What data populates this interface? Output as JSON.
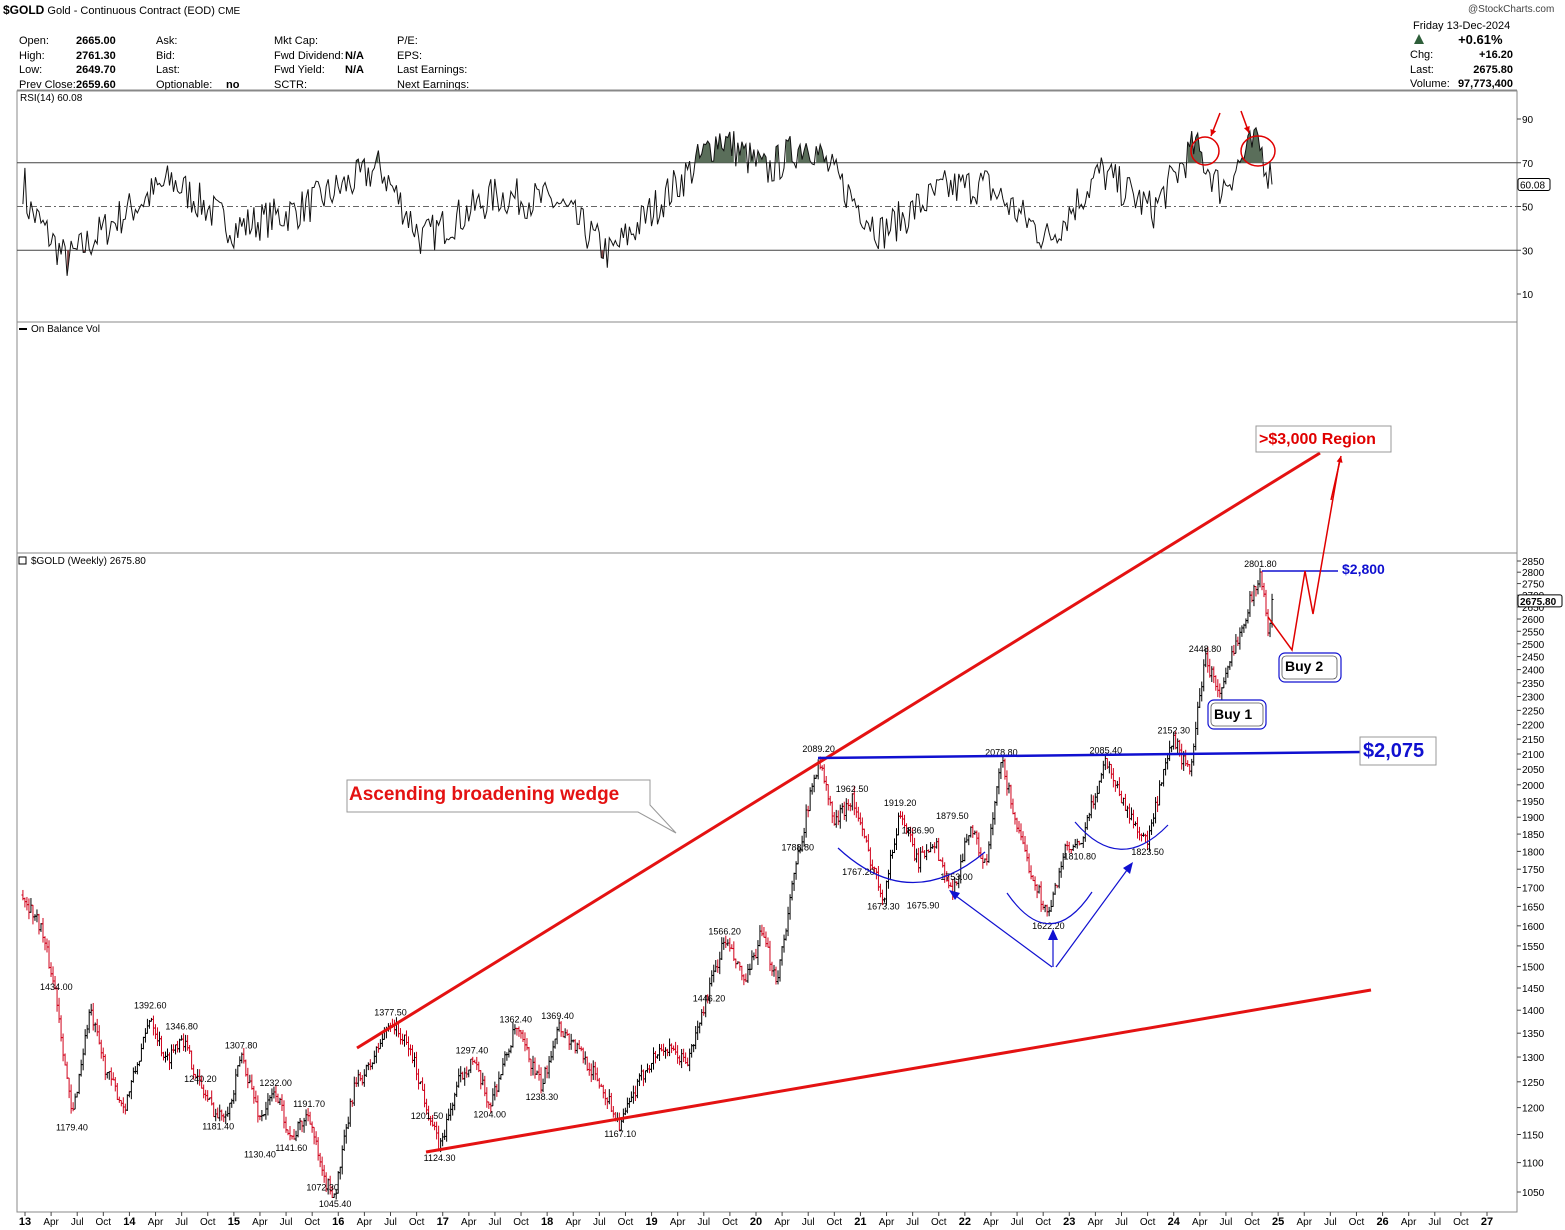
{
  "header": {
    "symbol": "$GOLD",
    "name": "Gold - Continuous Contract (EOD)",
    "exchange": "CME",
    "watermark": "@StockCharts.com",
    "date": "Friday  13-Dec-2024",
    "pct_change": "+0.61%",
    "fields_col1": [
      {
        "label": "Open:",
        "value": "2665.00"
      },
      {
        "label": "High:",
        "value": "2761.30"
      },
      {
        "label": "Low:",
        "value": "2649.70"
      },
      {
        "label": "Prev Close:",
        "value": "2659.60"
      }
    ],
    "fields_col2": [
      {
        "label": "Ask:",
        "value": ""
      },
      {
        "label": "Bid:",
        "value": ""
      },
      {
        "label": "Last:",
        "value": ""
      },
      {
        "label": "Optionable:",
        "value": "no"
      }
    ],
    "fields_col3": [
      {
        "label": "Mkt Cap:",
        "value": ""
      },
      {
        "label": "Fwd Dividend:",
        "value": "N/A"
      },
      {
        "label": "Fwd Yield:",
        "value": "N/A"
      },
      {
        "label": "SCTR:",
        "value": ""
      }
    ],
    "fields_col4": [
      {
        "label": "P/E:",
        "value": ""
      },
      {
        "label": "EPS:",
        "value": ""
      },
      {
        "label": "Last Earnings:",
        "value": ""
      },
      {
        "label": "Next Earnings:",
        "value": ""
      }
    ],
    "fields_right": [
      {
        "label": "Chg:",
        "value": "+16.20"
      },
      {
        "label": "Last:",
        "value": "2675.80"
      },
      {
        "label": "Volume:",
        "value": "97,773,400"
      }
    ]
  },
  "colors": {
    "up_bar": "#000000",
    "down_bar": "#d0021b",
    "wedge": "#e41212",
    "resistance": "#1010d0",
    "rsi_fill": "#5a6e5a",
    "annot_red": "#e00000"
  },
  "chart_data": [
    {
      "type": "line",
      "title": "RSI(14) 60.08",
      "current_value_label": "60.08",
      "current_value": 60.08,
      "ylim": [
        0,
        100
      ],
      "yticks": [
        90,
        70,
        50,
        30,
        10
      ],
      "reference_lines": [
        70,
        50,
        30
      ],
      "annotations": [
        "overbought-peak-circle-1",
        "overbought-peak-circle-2"
      ]
    },
    {
      "type": "line",
      "title": "On Balance Vol"
    },
    {
      "type": "bar",
      "subtype": "ohlc",
      "title": "$GOLD (Weekly) 2675.80",
      "current_value_label": "2675.80",
      "current_value": 2675.8,
      "ylim": [
        1000,
        2900
      ],
      "yticks": [
        1050,
        1100,
        1150,
        1200,
        1250,
        1300,
        1350,
        1400,
        1450,
        1500,
        1550,
        1600,
        1650,
        1700,
        1750,
        1800,
        1850,
        1900,
        1950,
        2000,
        2050,
        2100,
        2150,
        2200,
        2250,
        2300,
        2350,
        2400,
        2450,
        2500,
        2550,
        2600,
        2650,
        2700,
        2750,
        2800,
        2850
      ],
      "x_axis_range": [
        2013.0,
        2027.5
      ],
      "x_ticks": [
        {
          "label": "13",
          "x": 2013.0,
          "major": true
        },
        {
          "label": "Apr",
          "x": 2013.25
        },
        {
          "label": "Jul",
          "x": 2013.5
        },
        {
          "label": "Oct",
          "x": 2013.75
        },
        {
          "label": "14",
          "x": 2014.0,
          "major": true
        },
        {
          "label": "Apr",
          "x": 2014.25
        },
        {
          "label": "Jul",
          "x": 2014.5
        },
        {
          "label": "Oct",
          "x": 2014.75
        },
        {
          "label": "15",
          "x": 2015.0,
          "major": true
        },
        {
          "label": "Apr",
          "x": 2015.25
        },
        {
          "label": "Jul",
          "x": 2015.5
        },
        {
          "label": "Oct",
          "x": 2015.75
        },
        {
          "label": "16",
          "x": 2016.0,
          "major": true
        },
        {
          "label": "Apr",
          "x": 2016.25
        },
        {
          "label": "Jul",
          "x": 2016.5
        },
        {
          "label": "Oct",
          "x": 2016.75
        },
        {
          "label": "17",
          "x": 2017.0,
          "major": true
        },
        {
          "label": "Apr",
          "x": 2017.25
        },
        {
          "label": "Jul",
          "x": 2017.5
        },
        {
          "label": "Oct",
          "x": 2017.75
        },
        {
          "label": "18",
          "x": 2018.0,
          "major": true
        },
        {
          "label": "Apr",
          "x": 2018.25
        },
        {
          "label": "Jul",
          "x": 2018.5
        },
        {
          "label": "Oct",
          "x": 2018.75
        },
        {
          "label": "19",
          "x": 2019.0,
          "major": true
        },
        {
          "label": "Apr",
          "x": 2019.25
        },
        {
          "label": "Jul",
          "x": 2019.5
        },
        {
          "label": "Oct",
          "x": 2019.75
        },
        {
          "label": "20",
          "x": 2020.0,
          "major": true
        },
        {
          "label": "Apr",
          "x": 2020.25
        },
        {
          "label": "Jul",
          "x": 2020.5
        },
        {
          "label": "Oct",
          "x": 2020.75
        },
        {
          "label": "21",
          "x": 2021.0,
          "major": true
        },
        {
          "label": "Apr",
          "x": 2021.25
        },
        {
          "label": "Jul",
          "x": 2021.5
        },
        {
          "label": "Oct",
          "x": 2021.75
        },
        {
          "label": "22",
          "x": 2022.0,
          "major": true
        },
        {
          "label": "Apr",
          "x": 2022.25
        },
        {
          "label": "Jul",
          "x": 2022.5
        },
        {
          "label": "Oct",
          "x": 2022.75
        },
        {
          "label": "23",
          "x": 2023.0,
          "major": true
        },
        {
          "label": "Apr",
          "x": 2023.25
        },
        {
          "label": "Jul",
          "x": 2023.5
        },
        {
          "label": "Oct",
          "x": 2023.75
        },
        {
          "label": "24",
          "x": 2024.0,
          "major": true
        },
        {
          "label": "Apr",
          "x": 2024.25
        },
        {
          "label": "Jul",
          "x": 2024.5
        },
        {
          "label": "Oct",
          "x": 2024.75
        },
        {
          "label": "25",
          "x": 2025.0,
          "major": true
        },
        {
          "label": "Apr",
          "x": 2025.25
        },
        {
          "label": "Jul",
          "x": 2025.5
        },
        {
          "label": "Oct",
          "x": 2025.75
        },
        {
          "label": "26",
          "x": 2026.0,
          "major": true
        },
        {
          "label": "Apr",
          "x": 2026.25
        },
        {
          "label": "Jul",
          "x": 2026.5
        },
        {
          "label": "Oct",
          "x": 2026.75
        },
        {
          "label": "27",
          "x": 2027.0,
          "major": true
        }
      ],
      "key_points": [
        [
          2012.98,
          1680
        ],
        [
          2013.15,
          1600
        ],
        [
          2013.3,
          1434
        ],
        [
          2013.45,
          1179.4
        ],
        [
          2013.62,
          1400
        ],
        [
          2013.78,
          1270
        ],
        [
          2013.95,
          1200
        ],
        [
          2014.15,
          1340
        ],
        [
          2014.2,
          1392.6
        ],
        [
          2014.35,
          1290
        ],
        [
          2014.5,
          1346.8
        ],
        [
          2014.68,
          1240.2
        ],
        [
          2014.85,
          1181.4
        ],
        [
          2014.98,
          1210
        ],
        [
          2015.07,
          1307.8
        ],
        [
          2015.25,
          1180
        ],
        [
          2015.4,
          1232
        ],
        [
          2015.55,
          1141.6
        ],
        [
          2015.72,
          1191.7
        ],
        [
          2015.85,
          1072.3
        ],
        [
          2015.97,
          1045.4
        ],
        [
          2016.15,
          1240
        ],
        [
          2016.3,
          1280
        ],
        [
          2016.5,
          1377.5
        ],
        [
          2016.7,
          1310
        ],
        [
          2016.85,
          1201.5
        ],
        [
          2016.97,
          1124.3
        ],
        [
          2017.15,
          1250
        ],
        [
          2017.28,
          1297.4
        ],
        [
          2017.45,
          1204
        ],
        [
          2017.7,
          1362.4
        ],
        [
          2017.95,
          1238.3
        ],
        [
          2018.1,
          1369.4
        ],
        [
          2018.35,
          1300
        ],
        [
          2018.55,
          1230
        ],
        [
          2018.7,
          1167.1
        ],
        [
          2018.95,
          1280
        ],
        [
          2019.1,
          1320
        ],
        [
          2019.35,
          1290
        ],
        [
          2019.55,
          1446.2
        ],
        [
          2019.7,
          1566.2
        ],
        [
          2019.9,
          1460
        ],
        [
          2020.05,
          1580
        ],
        [
          2020.2,
          1470
        ],
        [
          2020.4,
          1788.8
        ],
        [
          2020.6,
          2089.2
        ],
        [
          2020.75,
          1880
        ],
        [
          2020.92,
          1962.5
        ],
        [
          2021.05,
          1820
        ],
        [
          2021.22,
          1673.3
        ],
        [
          2021.38,
          1919.2
        ],
        [
          2021.55,
          1767.2
        ],
        [
          2021.7,
          1836.9
        ],
        [
          2021.88,
          1675.9
        ],
        [
          2022.05,
          1879.5
        ],
        [
          2022.2,
          1753
        ],
        [
          2022.35,
          2078.8
        ],
        [
          2022.55,
          1810
        ],
        [
          2022.8,
          1622.2
        ],
        [
          2022.95,
          1800
        ],
        [
          2023.1,
          1810.8
        ],
        [
          2023.35,
          2085.4
        ],
        [
          2023.55,
          1920
        ],
        [
          2023.75,
          1823.5
        ],
        [
          2023.88,
          2000
        ],
        [
          2024.0,
          2152.3
        ],
        [
          2024.15,
          2030
        ],
        [
          2024.3,
          2448.8
        ],
        [
          2024.45,
          2300
        ],
        [
          2024.6,
          2510
        ],
        [
          2024.83,
          2801.8
        ],
        [
          2024.9,
          2560
        ],
        [
          2024.95,
          2675.8
        ]
      ],
      "price_labels": [
        {
          "text": "1434.00",
          "x": 2013.3,
          "y": 1434
        },
        {
          "text": "1179.40",
          "x": 2013.45,
          "y": 1179.4
        },
        {
          "text": "1392.60",
          "x": 2014.2,
          "y": 1392.6
        },
        {
          "text": "1346.80",
          "x": 2014.5,
          "y": 1346.8
        },
        {
          "text": "1240.20",
          "x": 2014.68,
          "y": 1240.2
        },
        {
          "text": "1181.40",
          "x": 2014.85,
          "y": 1181.4
        },
        {
          "text": "1307.80",
          "x": 2015.07,
          "y": 1307.8
        },
        {
          "text": "1232.00",
          "x": 2015.4,
          "y": 1232
        },
        {
          "text": "1130.40",
          "x": 2015.25,
          "y": 1130.4
        },
        {
          "text": "1141.60",
          "x": 2015.55,
          "y": 1141.6
        },
        {
          "text": "1191.70",
          "x": 2015.72,
          "y": 1191.7
        },
        {
          "text": "1072.30",
          "x": 2015.85,
          "y": 1072.3
        },
        {
          "text": "1045.40",
          "x": 2015.97,
          "y": 1045.4
        },
        {
          "text": "1377.50",
          "x": 2016.5,
          "y": 1377.5
        },
        {
          "text": "1201.50",
          "x": 2016.85,
          "y": 1201.5
        },
        {
          "text": "1124.30",
          "x": 2016.97,
          "y": 1124.3
        },
        {
          "text": "1297.40",
          "x": 2017.28,
          "y": 1297.4
        },
        {
          "text": "1204.00",
          "x": 2017.45,
          "y": 1204
        },
        {
          "text": "1362.40",
          "x": 2017.7,
          "y": 1362.4
        },
        {
          "text": "1238.30",
          "x": 2017.95,
          "y": 1238.3
        },
        {
          "text": "1369.40",
          "x": 2018.1,
          "y": 1369.4
        },
        {
          "text": "1167.10",
          "x": 2018.7,
          "y": 1167.1
        },
        {
          "text": "1446.20",
          "x": 2019.55,
          "y": 1446.2
        },
        {
          "text": "1566.20",
          "x": 2019.7,
          "y": 1566.2
        },
        {
          "text": "1788.80",
          "x": 2020.4,
          "y": 1788.8
        },
        {
          "text": "2089.20",
          "x": 2020.6,
          "y": 2089.2
        },
        {
          "text": "1962.50",
          "x": 2020.92,
          "y": 1962.5
        },
        {
          "text": "1767.20",
          "x": 2020.98,
          "y": 1767.2
        },
        {
          "text": "1673.30",
          "x": 2021.22,
          "y": 1673.3
        },
        {
          "text": "1919.20",
          "x": 2021.38,
          "y": 1919.2
        },
        {
          "text": "1836.90",
          "x": 2021.55,
          "y": 1836.9
        },
        {
          "text": "1675.90",
          "x": 2021.6,
          "y": 1675.9
        },
        {
          "text": "1879.50",
          "x": 2021.88,
          "y": 1879.5
        },
        {
          "text": "1753.00",
          "x": 2021.92,
          "y": 1753
        },
        {
          "text": "2078.80",
          "x": 2022.35,
          "y": 2078.8
        },
        {
          "text": "1622.20",
          "x": 2022.8,
          "y": 1622.2
        },
        {
          "text": "1810.80",
          "x": 2023.1,
          "y": 1810.8
        },
        {
          "text": "2085.40",
          "x": 2023.35,
          "y": 2085.4
        },
        {
          "text": "1823.50",
          "x": 2023.75,
          "y": 1823.5
        },
        {
          "text": "2152.30",
          "x": 2024.0,
          "y": 2152.3
        },
        {
          "text": "2448.80",
          "x": 2024.3,
          "y": 2448.8
        },
        {
          "text": "2801.80",
          "x": 2024.83,
          "y": 2801.8
        }
      ],
      "annotations": {
        "wedge_label": "Ascending broadening wedge",
        "target_label": ">$3,000 Region",
        "resistance_2800_label": "$2,800",
        "resistance_2075_label": "$2,075",
        "buy1_label": "Buy 1",
        "buy2_label": "Buy 2"
      }
    }
  ]
}
